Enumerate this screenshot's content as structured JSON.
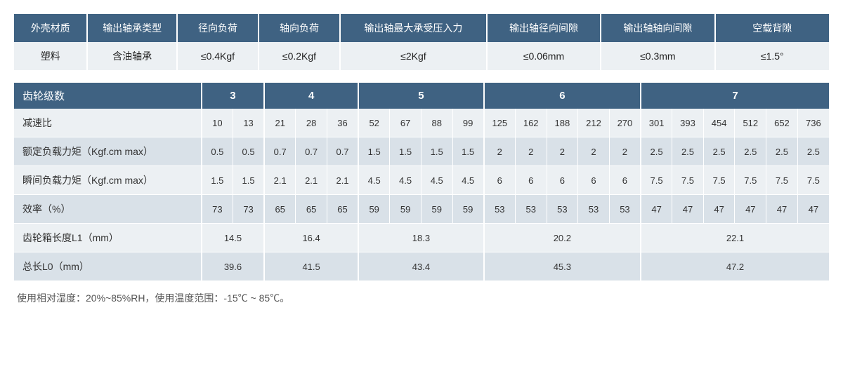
{
  "colors": {
    "header_bg": "#3f6282",
    "header_fg": "#ffffff",
    "row_odd_bg": "#ecf0f3",
    "row_even_bg": "#d9e1e8",
    "border": "#ffffff",
    "text": "#333333",
    "footnote": "#555555"
  },
  "table1": {
    "headers": [
      "外壳材质",
      "输出轴承类型",
      "径向负荷",
      "轴向负荷",
      "输出轴最大承受压入力",
      "输出轴径向间隙",
      "输出轴轴向间隙",
      "空载背隙"
    ],
    "values": [
      "塑料",
      "含油轴承",
      "≤0.4Kgf",
      "≤0.2Kgf",
      "≤2Kgf",
      "≤0.06mm",
      "≤0.3mm",
      "≤1.5°"
    ],
    "col_widths_pct": [
      9,
      11,
      10,
      10,
      18,
      14,
      14,
      14
    ]
  },
  "table2": {
    "corner_label": "齿轮级数",
    "label_col_width_pct": 23,
    "groups": [
      {
        "label": "3",
        "span": 2
      },
      {
        "label": "4",
        "span": 3
      },
      {
        "label": "5",
        "span": 4
      },
      {
        "label": "6",
        "span": 5
      },
      {
        "label": "7",
        "span": 6
      }
    ],
    "rows": [
      {
        "label": "减速比",
        "cells": [
          "10",
          "13",
          "21",
          "28",
          "36",
          "52",
          "67",
          "88",
          "99",
          "125",
          "162",
          "188",
          "212",
          "270",
          "301",
          "393",
          "454",
          "512",
          "652",
          "736"
        ]
      },
      {
        "label": "额定负载力矩（Kgf.cm max）",
        "cells": [
          "0.5",
          "0.5",
          "0.7",
          "0.7",
          "0.7",
          "1.5",
          "1.5",
          "1.5",
          "1.5",
          "2",
          "2",
          "2",
          "2",
          "2",
          "2.5",
          "2.5",
          "2.5",
          "2.5",
          "2.5",
          "2.5"
        ]
      },
      {
        "label": "瞬间负载力矩（Kgf.cm max）",
        "cells": [
          "1.5",
          "1.5",
          "2.1",
          "2.1",
          "2.1",
          "4.5",
          "4.5",
          "4.5",
          "4.5",
          "6",
          "6",
          "6",
          "6",
          "6",
          "7.5",
          "7.5",
          "7.5",
          "7.5",
          "7.5",
          "7.5"
        ]
      },
      {
        "label": "效率（%）",
        "cells": [
          "73",
          "73",
          "65",
          "65",
          "65",
          "59",
          "59",
          "59",
          "59",
          "53",
          "53",
          "53",
          "53",
          "53",
          "47",
          "47",
          "47",
          "47",
          "47",
          "47"
        ]
      },
      {
        "label": "齿轮箱长度L1（mm）",
        "merged": true,
        "cells": [
          "14.5",
          "16.4",
          "18.3",
          "20.2",
          "22.1"
        ]
      },
      {
        "label": "总长L0（mm）",
        "merged": true,
        "cells": [
          "39.6",
          "41.5",
          "43.4",
          "45.3",
          "47.2"
        ]
      }
    ]
  },
  "footnote": "使用相对湿度：20%~85%RH，使用温度范围：-15℃ ~ 85℃。"
}
